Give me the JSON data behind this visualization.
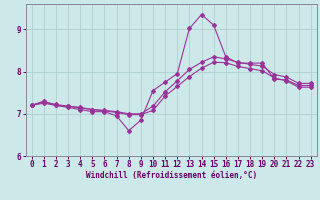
{
  "xlabel": "Windchill (Refroidissement éolien,°C)",
  "bg_color": "#cce8e8",
  "grid_color": "#aacccc",
  "line_color": "#993399",
  "xlim": [
    -0.5,
    23.5
  ],
  "ylim": [
    6.0,
    9.6
  ],
  "yticks": [
    6,
    7,
    8,
    9
  ],
  "xticks": [
    0,
    1,
    2,
    3,
    4,
    5,
    6,
    7,
    8,
    9,
    10,
    11,
    12,
    13,
    14,
    15,
    16,
    17,
    18,
    19,
    20,
    21,
    22,
    23
  ],
  "line1_y": [
    7.2,
    7.3,
    7.2,
    7.15,
    7.1,
    7.05,
    7.05,
    6.95,
    6.6,
    6.85,
    7.55,
    7.75,
    7.95,
    9.02,
    9.35,
    9.1,
    8.35,
    8.2,
    8.2,
    8.2,
    7.82,
    7.8,
    7.67,
    7.67
  ],
  "line2_y": [
    7.2,
    7.28,
    7.22,
    7.18,
    7.15,
    7.1,
    7.08,
    7.05,
    7.0,
    7.0,
    7.18,
    7.52,
    7.78,
    8.05,
    8.22,
    8.35,
    8.3,
    8.22,
    8.17,
    8.13,
    7.93,
    7.87,
    7.72,
    7.72
  ],
  "line3_y": [
    7.2,
    7.25,
    7.2,
    7.18,
    7.14,
    7.1,
    7.07,
    7.03,
    6.98,
    6.98,
    7.08,
    7.42,
    7.65,
    7.88,
    8.08,
    8.22,
    8.21,
    8.12,
    8.07,
    8.02,
    7.85,
    7.78,
    7.63,
    7.63
  ],
  "font_color": "#660066",
  "spine_color": "#888899",
  "xlabel_fontsize": 5.5,
  "tick_fontsize": 5.5,
  "linewidth": 0.8,
  "markersize": 2.0
}
